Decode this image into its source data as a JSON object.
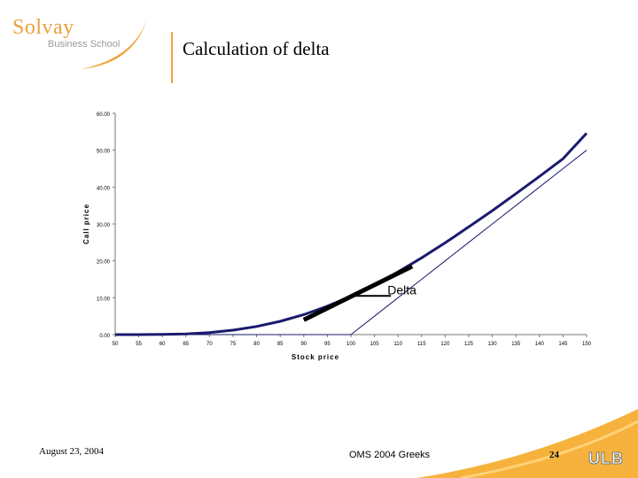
{
  "header": {
    "logo_main": "Solvay",
    "logo_sub": "Business School",
    "title": "Calculation of delta"
  },
  "colors": {
    "accent": "#f2a23a",
    "curve": "#1a1a6e",
    "tangent": "#000000"
  },
  "chart_data": {
    "type": "line",
    "xlabel": "Stock price",
    "ylabel": "Call price",
    "x": [
      50,
      55,
      60,
      65,
      70,
      75,
      80,
      85,
      90,
      95,
      100,
      105,
      110,
      115,
      120,
      125,
      130,
      135,
      140,
      145,
      150
    ],
    "x_tick_labels": [
      "50",
      "55",
      "60",
      "65",
      "70",
      "75",
      "80",
      "85",
      "90",
      "95",
      "100",
      "105",
      "110",
      "115",
      "120",
      "125",
      "130",
      "135",
      "140",
      "145",
      "150"
    ],
    "y_tick_labels": [
      "0.00",
      "10.00",
      "20.00",
      "30.00",
      "40.00",
      "50.00",
      "60.00"
    ],
    "ylim": [
      0,
      60
    ],
    "xlim": [
      50,
      150
    ],
    "series": [
      {
        "values": [
          0.0,
          0.0,
          0.05,
          0.2,
          0.55,
          1.2,
          2.2,
          3.6,
          5.4,
          7.7,
          10.4,
          13.5,
          17.0,
          20.8,
          24.9,
          29.2,
          33.6,
          38.2,
          42.9,
          47.7,
          54.6
        ]
      },
      {
        "values": [
          0,
          0,
          0,
          0,
          0,
          0,
          0,
          0,
          0,
          0,
          0,
          5,
          10,
          15,
          20,
          25,
          30,
          35,
          40,
          45,
          50
        ]
      }
    ],
    "tangent": {
      "x": [
        90,
        113
      ],
      "y": [
        4,
        18.5
      ]
    },
    "annotation": "Delta",
    "grid": false
  },
  "footer": {
    "date": "August 23, 2004",
    "course": "OMS 2004 Greeks",
    "page": "24",
    "brand": "ULB"
  }
}
